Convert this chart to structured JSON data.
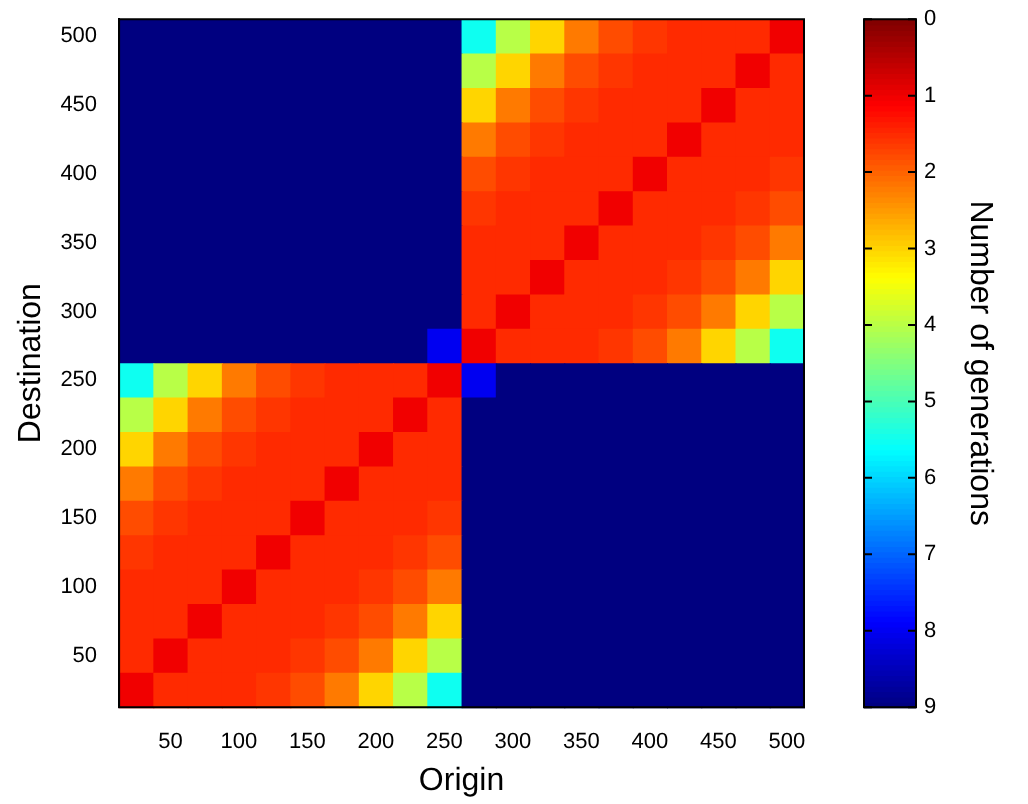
{
  "chart_data": {
    "type": "heatmap",
    "xlabel": "Origin",
    "ylabel": "Destination",
    "clabel": "Number of generations",
    "categories": [
      null,
      "50",
      null,
      "100",
      null,
      "150",
      null,
      "200",
      null,
      "250",
      null,
      "300",
      null,
      "350",
      null,
      "400",
      null,
      "450",
      null,
      "500"
    ],
    "y_categories": [
      "500",
      null,
      "450",
      null,
      "400",
      null,
      "350",
      null,
      "300",
      null,
      "250",
      null,
      "200",
      null,
      "150",
      null,
      "100",
      null,
      "50",
      null
    ],
    "clim": [
      9,
      0
    ],
    "cticks": [
      0,
      1,
      2,
      3,
      4,
      5,
      6,
      7,
      8,
      9
    ],
    "cells": [
      [
        9,
        9,
        9,
        9,
        9,
        9,
        9,
        9,
        9,
        9,
        5.5,
        4,
        3,
        2.2,
        1.8,
        1.6,
        1.5,
        1.5,
        1.5,
        1
      ],
      [
        9,
        9,
        9,
        9,
        9,
        9,
        9,
        9,
        9,
        9,
        4,
        3,
        2.2,
        1.8,
        1.6,
        1.5,
        1.5,
        1.5,
        1,
        1.5
      ],
      [
        9,
        9,
        9,
        9,
        9,
        9,
        9,
        9,
        9,
        9,
        3,
        2.2,
        1.8,
        1.6,
        1.5,
        1.5,
        1.5,
        1,
        1.5,
        1.5
      ],
      [
        9,
        9,
        9,
        9,
        9,
        9,
        9,
        9,
        9,
        9,
        2.2,
        1.8,
        1.6,
        1.5,
        1.5,
        1.5,
        1,
        1.5,
        1.5,
        1.5
      ],
      [
        9,
        9,
        9,
        9,
        9,
        9,
        9,
        9,
        9,
        9,
        1.8,
        1.6,
        1.5,
        1.5,
        1.5,
        1,
        1.5,
        1.5,
        1.5,
        1.6
      ],
      [
        9,
        9,
        9,
        9,
        9,
        9,
        9,
        9,
        9,
        9,
        1.6,
        1.5,
        1.5,
        1.5,
        1,
        1.5,
        1.5,
        1.5,
        1.6,
        1.8
      ],
      [
        9,
        9,
        9,
        9,
        9,
        9,
        9,
        9,
        9,
        9,
        1.5,
        1.5,
        1.5,
        1,
        1.5,
        1.5,
        1.5,
        1.6,
        1.8,
        2.2
      ],
      [
        9,
        9,
        9,
        9,
        9,
        9,
        9,
        9,
        9,
        9,
        1.5,
        1.5,
        1,
        1.5,
        1.5,
        1.5,
        1.6,
        1.8,
        2.2,
        3
      ],
      [
        9,
        9,
        9,
        9,
        9,
        9,
        9,
        9,
        9,
        9,
        1.5,
        1,
        1.5,
        1.5,
        1.5,
        1.6,
        1.8,
        2.2,
        3,
        4
      ],
      [
        9,
        9,
        9,
        9,
        9,
        9,
        9,
        9,
        9,
        8,
        1,
        1.5,
        1.5,
        1.5,
        1.6,
        1.8,
        2.2,
        3,
        4,
        5.5
      ],
      [
        5.5,
        4,
        3,
        2.2,
        1.8,
        1.6,
        1.5,
        1.5,
        1.5,
        1,
        8,
        9,
        9,
        9,
        9,
        9,
        9,
        9,
        9,
        9
      ],
      [
        4,
        3,
        2.2,
        1.8,
        1.6,
        1.5,
        1.5,
        1.5,
        1,
        1.5,
        9,
        9,
        9,
        9,
        9,
        9,
        9,
        9,
        9,
        9
      ],
      [
        3,
        2.2,
        1.8,
        1.6,
        1.5,
        1.5,
        1.5,
        1,
        1.5,
        1.5,
        9,
        9,
        9,
        9,
        9,
        9,
        9,
        9,
        9,
        9
      ],
      [
        2.2,
        1.8,
        1.6,
        1.5,
        1.5,
        1.5,
        1,
        1.5,
        1.5,
        1.5,
        9,
        9,
        9,
        9,
        9,
        9,
        9,
        9,
        9,
        9
      ],
      [
        1.8,
        1.6,
        1.5,
        1.5,
        1.5,
        1,
        1.5,
        1.5,
        1.5,
        1.6,
        9,
        9,
        9,
        9,
        9,
        9,
        9,
        9,
        9,
        9
      ],
      [
        1.6,
        1.5,
        1.5,
        1.5,
        1,
        1.5,
        1.5,
        1.5,
        1.6,
        1.8,
        9,
        9,
        9,
        9,
        9,
        9,
        9,
        9,
        9,
        9
      ],
      [
        1.5,
        1.5,
        1.5,
        1,
        1.5,
        1.5,
        1.5,
        1.6,
        1.8,
        2.2,
        9,
        9,
        9,
        9,
        9,
        9,
        9,
        9,
        9,
        9
      ],
      [
        1.5,
        1.5,
        1,
        1.5,
        1.5,
        1.5,
        1.6,
        1.8,
        2.2,
        3,
        9,
        9,
        9,
        9,
        9,
        9,
        9,
        9,
        9,
        9
      ],
      [
        1.5,
        1,
        1.5,
        1.5,
        1.5,
        1.6,
        1.8,
        2.2,
        3,
        4,
        9,
        9,
        9,
        9,
        9,
        9,
        9,
        9,
        9,
        9
      ],
      [
        1,
        1.5,
        1.5,
        1.5,
        1.6,
        1.8,
        2.2,
        3,
        4,
        5.5,
        9,
        9,
        9,
        9,
        9,
        9,
        9,
        9,
        9,
        9
      ]
    ]
  }
}
